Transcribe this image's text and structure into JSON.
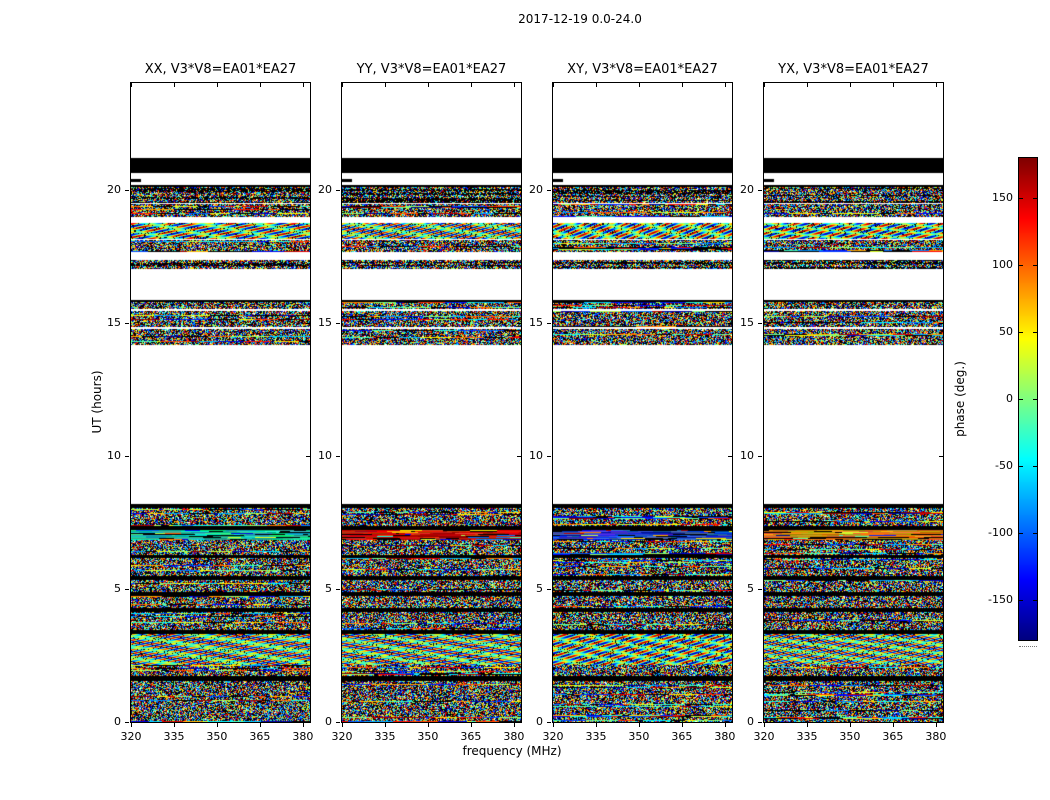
{
  "chart_data": {
    "type": "heatmap",
    "title": "2017-12-19 0.0-24.0",
    "xlabel": "frequency (MHz)",
    "ylabel": "UT (hours)",
    "x_range": [
      320,
      382.5
    ],
    "x_ticks": [
      320,
      335,
      350,
      365,
      380
    ],
    "y_range": [
      0,
      24
    ],
    "y_ticks": [
      0,
      5,
      10,
      15,
      20
    ],
    "colormap": "jet",
    "grid": false,
    "colorbar": {
      "label": "phase (deg.)",
      "range": [
        -180,
        180
      ],
      "ticks": [
        150,
        100,
        50,
        0,
        -50,
        -100,
        -150
      ]
    },
    "panels": [
      {
        "pol": "XX",
        "title": "XX, V3*V8=EA01*EA27",
        "accent": "#10c0a0",
        "seed": 11
      },
      {
        "pol": "YY",
        "title": "YY, V3*V8=EA01*EA27",
        "accent": "#c41000",
        "seed": 22
      },
      {
        "pol": "XY",
        "title": "XY, V3*V8=EA01*EA27",
        "accent": "#2040c0",
        "seed": 33
      },
      {
        "pol": "YX",
        "title": "YX, V3*V8=EA01*EA27",
        "accent": "#d08010",
        "seed": 44
      }
    ],
    "bands": [
      {
        "y0": 0.0,
        "y1": 1.55,
        "kind": "noise"
      },
      {
        "y0": 1.55,
        "y1": 1.72,
        "kind": "black"
      },
      {
        "y0": 1.72,
        "y1": 2.15,
        "kind": "noise"
      },
      {
        "y0": 2.15,
        "y1": 3.3,
        "kind": "moire"
      },
      {
        "y0": 3.3,
        "y1": 3.45,
        "kind": "black"
      },
      {
        "y0": 3.45,
        "y1": 4.15,
        "kind": "noise"
      },
      {
        "y0": 4.15,
        "y1": 4.3,
        "kind": "black"
      },
      {
        "y0": 4.3,
        "y1": 4.75,
        "kind": "noise"
      },
      {
        "y0": 4.75,
        "y1": 4.88,
        "kind": "black"
      },
      {
        "y0": 4.88,
        "y1": 5.35,
        "kind": "noise"
      },
      {
        "y0": 5.35,
        "y1": 5.5,
        "kind": "black"
      },
      {
        "y0": 5.5,
        "y1": 6.15,
        "kind": "noise"
      },
      {
        "y0": 6.15,
        "y1": 6.28,
        "kind": "black"
      },
      {
        "y0": 6.28,
        "y1": 6.85,
        "kind": "noise"
      },
      {
        "y0": 6.85,
        "y1": 7.22,
        "kind": "accent"
      },
      {
        "y0": 7.22,
        "y1": 7.36,
        "kind": "black"
      },
      {
        "y0": 7.36,
        "y1": 8.05,
        "kind": "noise"
      },
      {
        "y0": 8.05,
        "y1": 8.18,
        "kind": "black"
      },
      {
        "y0": 14.15,
        "y1": 14.75,
        "kind": "noise"
      },
      {
        "y0": 14.82,
        "y1": 15.45,
        "kind": "noise"
      },
      {
        "y0": 15.5,
        "y1": 15.78,
        "kind": "noise"
      },
      {
        "y0": 15.78,
        "y1": 15.86,
        "kind": "black"
      },
      {
        "y0": 17.0,
        "y1": 17.35,
        "kind": "striped"
      },
      {
        "y0": 17.65,
        "y1": 18.1,
        "kind": "noise"
      },
      {
        "y0": 18.15,
        "y1": 18.75,
        "kind": "moire"
      },
      {
        "y0": 18.95,
        "y1": 19.45,
        "kind": "noise"
      },
      {
        "y0": 19.5,
        "y1": 20.1,
        "kind": "striped"
      },
      {
        "y0": 20.1,
        "y1": 20.18,
        "kind": "black"
      },
      {
        "y0": 20.3,
        "y1": 20.4,
        "kind": "blackleft"
      },
      {
        "y0": 20.62,
        "y1": 21.18,
        "kind": "black"
      }
    ]
  }
}
